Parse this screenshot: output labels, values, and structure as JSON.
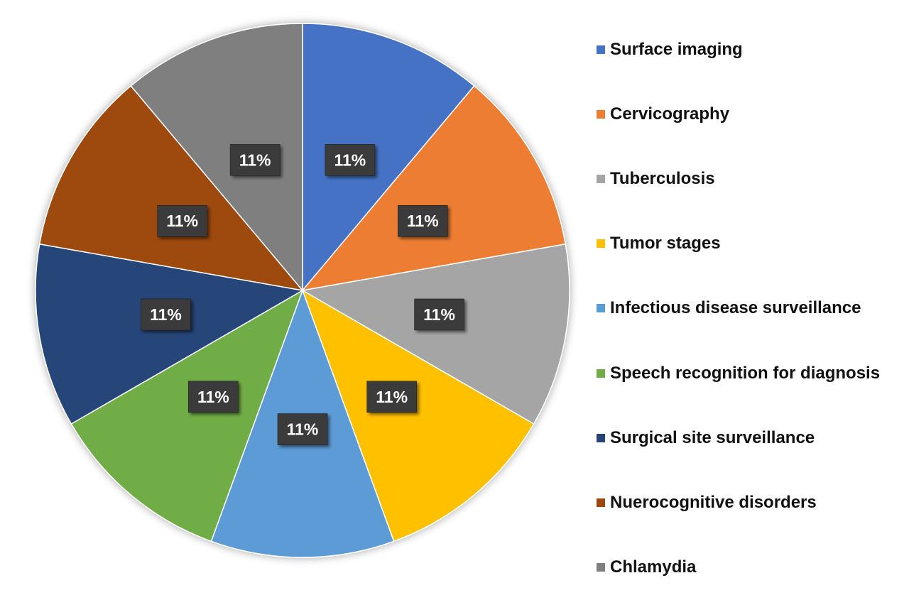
{
  "chart_data": {
    "type": "pie",
    "title": "",
    "legend_position": "right",
    "start_angle_deg": 0,
    "direction": "clockwise",
    "slices": [
      {
        "name": "Surface imaging",
        "value": 11,
        "label": "11%",
        "color": "#4472C4"
      },
      {
        "name": "Cervicography",
        "value": 11,
        "label": "11%",
        "color": "#ED7D31"
      },
      {
        "name": "Tuberculosis",
        "value": 11,
        "label": "11%",
        "color": "#A5A5A5"
      },
      {
        "name": "Tumor stages",
        "value": 11,
        "label": "11%",
        "color": "#FFC000"
      },
      {
        "name": "Infectious disease surveillance",
        "value": 11,
        "label": "11%",
        "color": "#5B9BD5"
      },
      {
        "name": "Speech recognition for diagnosis",
        "value": 11,
        "label": "11%",
        "color": "#70AD47"
      },
      {
        "name": "Surgical site surveillance",
        "value": 11,
        "label": "11%",
        "color": "#264478"
      },
      {
        "name": "Nuerocognitive disorders",
        "value": 11,
        "label": "11%",
        "color": "#9E480E"
      },
      {
        "name": "Chlamydia",
        "value": 11,
        "label": "11%",
        "color": "#7F7F7F"
      }
    ]
  }
}
